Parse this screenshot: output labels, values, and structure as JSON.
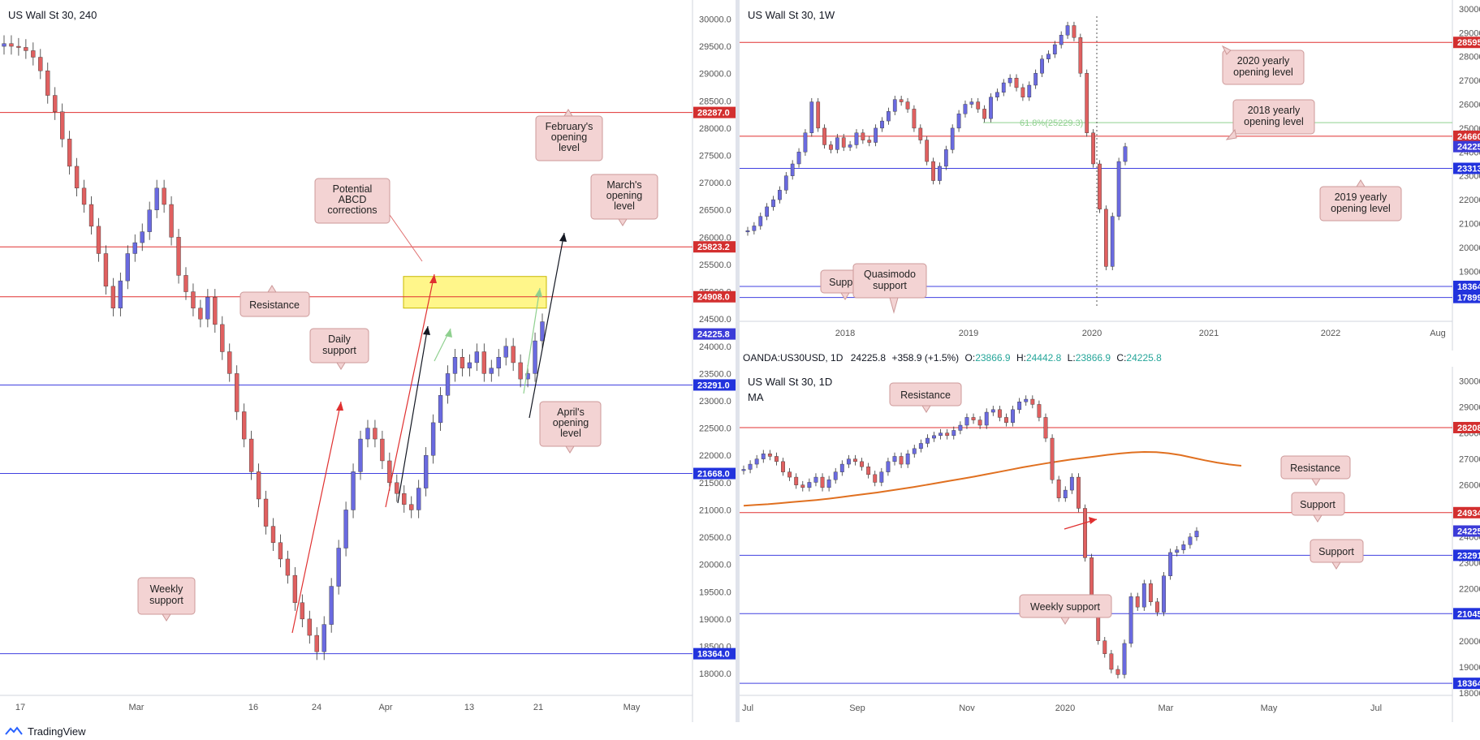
{
  "footer": {
    "brand": "TradingView"
  },
  "colors": {
    "red_level": "#e03030",
    "blue_level": "#4040e0",
    "green_level": "#8fd08f",
    "label_red": "#d32f2f",
    "label_blue": "#2233dd",
    "label_current": "#3b3bd8",
    "callout_fill": "#f3d3d3",
    "callout_border": "#c99",
    "zone_fill": "#fff68a",
    "ma_color": "#e07020",
    "up_candle": "#6a6ae0",
    "down_candle": "#e06060"
  },
  "chart_data": [
    {
      "id": "h4",
      "type": "candlestick",
      "title": "US Wall St 30, 240",
      "ylim": [
        17600,
        30200
      ],
      "y_ticks": [
        "30000.0",
        "29500.0",
        "29000.0",
        "28500.0",
        "28000.0",
        "27500.0",
        "27000.0",
        "26500.0",
        "26000.0",
        "25500.0",
        "25000.0",
        "24500.0",
        "24000.0",
        "23500.0",
        "23000.0",
        "22500.0",
        "22000.0",
        "21500.0",
        "21000.0",
        "20500.0",
        "20000.0",
        "19500.0",
        "19000.0",
        "18500.0",
        "18000.0"
      ],
      "x_ticks": [
        "17",
        "Mar",
        "16",
        "24",
        "Apr",
        "13",
        "21",
        "May"
      ],
      "levels": [
        {
          "label": "28287.0",
          "value": 28287.0,
          "color": "red"
        },
        {
          "label": "25823.2",
          "value": 25823.2,
          "color": "red"
        },
        {
          "label": "24908.0",
          "value": 24908.0,
          "color": "red"
        },
        {
          "label": "23291.0",
          "value": 23291.0,
          "color": "blue"
        },
        {
          "label": "21668.0",
          "value": 21668.0,
          "color": "blue"
        },
        {
          "label": "18364.0",
          "value": 18364.0,
          "color": "blue"
        }
      ],
      "current": {
        "label": "24225.8",
        "value": 24225.8
      },
      "annotations": [
        "February's opening level",
        "March's opening level",
        "Potential ABCD corrections",
        "Resistance",
        "Daily support",
        "April's opening level",
        "Weekly support"
      ],
      "zone": {
        "from": 24700,
        "to": 25280
      },
      "series": [
        {
          "values": [
            29550,
            29500,
            29480,
            29420,
            29300,
            29050,
            28600,
            28300,
            27800,
            27300,
            26900,
            26600,
            26200,
            25700,
            25100,
            24700,
            25200,
            25700,
            25900,
            26100,
            26500,
            26900,
            26600,
            26000,
            25300,
            25000,
            24700,
            24500,
            24900,
            24400,
            23900,
            23500,
            22800,
            22300,
            21700,
            21200,
            20700,
            20400,
            20100,
            19800,
            19300,
            19000,
            18700,
            18400,
            18900,
            19600,
            20300,
            21000,
            21700,
            22300,
            22500,
            22300,
            21900,
            21500,
            21300,
            21100,
            21000,
            21400,
            22000,
            22600,
            23100,
            23500,
            23800,
            23600,
            23700,
            23900,
            23500,
            23600,
            23800,
            24000,
            23700,
            23400,
            23500,
            24100,
            24450
          ]
        }
      ]
    },
    {
      "id": "weekly",
      "type": "candlestick",
      "title": "US Wall St 30, 1W",
      "ylim": [
        16900,
        30100
      ],
      "y_ticks": [
        "30000.0",
        "29000.0",
        "28000.0",
        "27000.0",
        "26000.0",
        "25000.0",
        "24000.0",
        "23000.0",
        "22000.0",
        "21000.0",
        "20000.0",
        "19000.0"
      ],
      "x_ticks": [
        "2018",
        "2019",
        "2020",
        "2021",
        "2022",
        "Aug"
      ],
      "levels": [
        {
          "label": "28595.0",
          "value": 28595.0,
          "color": "red"
        },
        {
          "label": "24660.0",
          "value": 24660.0,
          "color": "red"
        },
        {
          "label": "23313.0",
          "value": 23313.0,
          "color": "blue"
        },
        {
          "label": "18364.8",
          "value": 18364.8,
          "color": "blue"
        },
        {
          "label": "17899.7",
          "value": 17899.7,
          "color": "blue"
        }
      ],
      "fib": {
        "label": "61.8%(25229.3)",
        "value": 25229.3
      },
      "current": {
        "label": "24225.8",
        "value": 24225.8
      },
      "annotations": [
        "2020 yearly opening level",
        "2018 yearly opening level",
        "2019 yearly opening level",
        "Support",
        "Quasimodo support"
      ],
      "series": [
        {
          "values": [
            20700,
            20900,
            21300,
            21700,
            22000,
            22400,
            23000,
            23500,
            24000,
            24800,
            26100,
            25000,
            24300,
            24100,
            24600,
            24200,
            24300,
            24800,
            24500,
            24400,
            25000,
            25300,
            25700,
            26200,
            26100,
            25800,
            25000,
            24500,
            23600,
            22800,
            23400,
            24100,
            25000,
            25600,
            26000,
            26100,
            25800,
            25400,
            26300,
            26500,
            26900,
            27100,
            26700,
            26300,
            26800,
            27300,
            27900,
            28100,
            28500,
            28900,
            29300,
            28800,
            27300,
            24800,
            23500,
            21600,
            19200,
            21300,
            23600,
            24225
          ]
        }
      ]
    },
    {
      "id": "daily",
      "type": "candlestick",
      "title": "US Wall St 30, 1D",
      "legend": "MA",
      "header": {
        "symbol": "OANDA:US30USD, 1D",
        "last": "24225.8",
        "change": "+358.9 (+1.5%)",
        "o_label": "O:",
        "o": "23866.9",
        "h_label": "H:",
        "h": "24442.8",
        "l_label": "L:",
        "l": "23866.9",
        "c_label": "C:",
        "c": "24225.8"
      },
      "ylim": [
        17900,
        30300
      ],
      "y_ticks": [
        "30000.0",
        "29000.0",
        "28000.0",
        "27000.0",
        "26000.0",
        "25000.0",
        "24000.0",
        "23000.0",
        "22000.0",
        "21000.0",
        "20000.0",
        "19000.0",
        "18000.0"
      ],
      "x_ticks": [
        "Jul",
        "Sep",
        "Nov",
        "2020",
        "Mar",
        "May",
        "Jul"
      ],
      "levels": [
        {
          "label": "28208.0",
          "value": 28208.0,
          "color": "red"
        },
        {
          "label": "24934.0",
          "value": 24934.0,
          "color": "red"
        },
        {
          "label": "23291.0",
          "value": 23291.0,
          "color": "blue"
        },
        {
          "label": "21045.0",
          "value": 21045.0,
          "color": "blue"
        },
        {
          "label": "18364.0",
          "value": 18364.0,
          "color": "blue"
        }
      ],
      "current": {
        "label": "24225.8",
        "value": 24225.8
      },
      "annotations": [
        "Resistance",
        "Resistance",
        "Support",
        "Support",
        "Weekly support"
      ],
      "series": [
        {
          "values": [
            26600,
            26800,
            27000,
            27200,
            27100,
            26900,
            26500,
            26300,
            26000,
            25900,
            26100,
            26300,
            25900,
            26200,
            26500,
            26800,
            27000,
            26900,
            26700,
            26400,
            26100,
            26500,
            26900,
            27100,
            26800,
            27200,
            27400,
            27600,
            27800,
            27900,
            28000,
            27900,
            28100,
            28300,
            28600,
            28500,
            28300,
            28800,
            28900,
            28600,
            28400,
            28900,
            29200,
            29300,
            29100,
            28600,
            27800,
            26200,
            25500,
            25800,
            26300,
            25100,
            23200,
            21300,
            20000,
            19500,
            18900,
            18700,
            19900,
            21700,
            21300,
            22200,
            21500,
            21100,
            22500,
            23400,
            23500,
            23700,
            24000,
            24225
          ]
        }
      ],
      "ma": {
        "values": [
          25200,
          25230,
          25260,
          25300,
          25340,
          25380,
          25420,
          25470,
          25530,
          25590,
          25650,
          25710,
          25780,
          25850,
          25920,
          26000,
          26080,
          26160,
          26240,
          26320,
          26410,
          26500,
          26590,
          26680,
          26760,
          26840,
          26910,
          26980,
          27040,
          27100,
          27160,
          27210,
          27250,
          27270,
          27260,
          27220,
          27150,
          27050,
          26950,
          26860,
          26790,
          26740
        ]
      }
    }
  ]
}
